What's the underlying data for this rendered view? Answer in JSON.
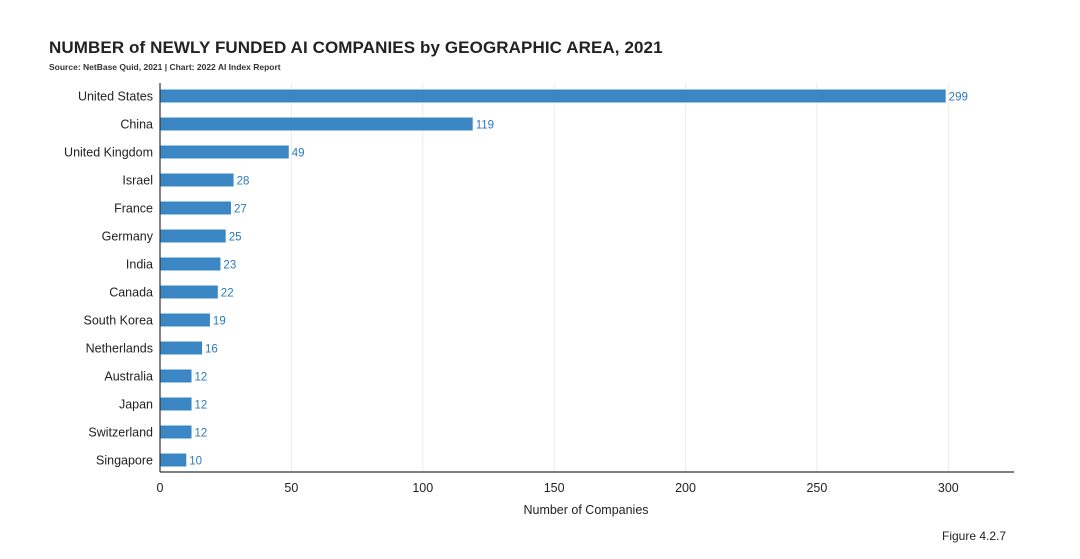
{
  "title": "NUMBER of NEWLY FUNDED AI COMPANIES by GEOGRAPHIC AREA, 2021",
  "source": "Source: NetBase Quid, 2021 | Chart: 2022 AI Index Report",
  "figure": "Figure 4.2.7",
  "chart_data": {
    "type": "bar",
    "orientation": "horizontal",
    "title": "NUMBER of NEWLY FUNDED AI COMPANIES by GEOGRAPHIC AREA, 2021",
    "xlabel": "Number of Companies",
    "ylabel": "",
    "xlim": [
      0,
      325
    ],
    "xticks": [
      0,
      50,
      100,
      150,
      200,
      250,
      300
    ],
    "grid": true,
    "bar_color": "#3a87c3",
    "value_label_color": "#2d7ab8",
    "categories": [
      "United States",
      "China",
      "United Kingdom",
      "Israel",
      "France",
      "Germany",
      "India",
      "Canada",
      "South Korea",
      "Netherlands",
      "Australia",
      "Japan",
      "Switzerland",
      "Singapore"
    ],
    "values": [
      299,
      119,
      49,
      28,
      27,
      25,
      23,
      22,
      19,
      16,
      12,
      12,
      12,
      10
    ]
  }
}
